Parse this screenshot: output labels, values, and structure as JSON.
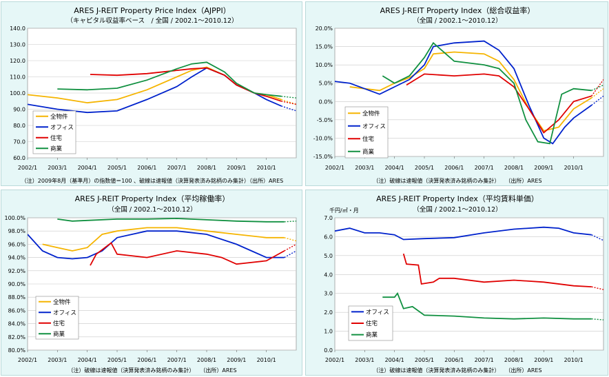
{
  "chart_data": [
    {
      "type": "line",
      "title": "ARES J-REIT Property Price Index（AJPPI）",
      "subtitle": "（キャピタル収益率ベース　/ 全国 / 2002.1～2010.12）",
      "note": "（注）2009年8月（基準月）の指数値＝100 、破線は速報値（決算発表済み銘柄のみ集計）（出所）ARES",
      "ylim": [
        60,
        140
      ],
      "yticks": [
        60,
        70,
        80,
        90,
        100,
        110,
        120,
        130,
        140
      ],
      "ytick_labels": [
        "60.0",
        "70.0",
        "80.0",
        "90.0",
        "100.0",
        "110.0",
        "120.0",
        "130.0",
        "140.0"
      ],
      "xlim": [
        2002,
        2011
      ],
      "xticks": [
        2002,
        2003,
        2004,
        2005,
        2006,
        2007,
        2008,
        2009,
        2010
      ],
      "xtick_labels": [
        "2002/1",
        "2003/1",
        "2004/1",
        "2005/1",
        "2006/1",
        "2007/1",
        "2008/1",
        "2009/1",
        "2010/1"
      ],
      "prelim_from": 2010.5,
      "series": [
        {
          "name": "全物件",
          "color": "#f5b400",
          "points": [
            [
              2002,
              99
            ],
            [
              2003,
              97
            ],
            [
              2004,
              94
            ],
            [
              2005,
              96
            ],
            [
              2006,
              102
            ],
            [
              2007,
              110
            ],
            [
              2007.5,
              114
            ],
            [
              2008,
              116
            ],
            [
              2008.6,
              111
            ],
            [
              2009,
              105
            ],
            [
              2009.6,
              100
            ],
            [
              2010,
              99
            ],
            [
              2010.5,
              96
            ],
            [
              2011,
              93
            ]
          ]
        },
        {
          "name": "オフィス",
          "color": "#0022cc",
          "points": [
            [
              2002,
              93
            ],
            [
              2003,
              90
            ],
            [
              2004,
              88
            ],
            [
              2005,
              89
            ],
            [
              2006,
              96
            ],
            [
              2007,
              104
            ],
            [
              2007.5,
              110
            ],
            [
              2008,
              115.5
            ],
            [
              2008.6,
              111
            ],
            [
              2009,
              105
            ],
            [
              2009.6,
              100
            ],
            [
              2010,
              96
            ],
            [
              2010.5,
              92
            ],
            [
              2011,
              89
            ]
          ]
        },
        {
          "name": "住宅",
          "color": "#e00000",
          "points": [
            [
              2004.1,
              111.5
            ],
            [
              2005,
              111
            ],
            [
              2006,
              112
            ],
            [
              2007,
              114
            ],
            [
              2007.5,
              115
            ],
            [
              2008,
              115.5
            ],
            [
              2008.6,
              111
            ],
            [
              2009,
              105
            ],
            [
              2009.6,
              100
            ],
            [
              2010,
              98
            ],
            [
              2010.5,
              95
            ],
            [
              2011,
              93
            ]
          ]
        },
        {
          "name": "商業",
          "color": "#109040",
          "points": [
            [
              2003,
              102.5
            ],
            [
              2004,
              102
            ],
            [
              2005,
              103
            ],
            [
              2006,
              108
            ],
            [
              2007,
              115
            ],
            [
              2007.5,
              118
            ],
            [
              2008,
              119
            ],
            [
              2008.6,
              113
            ],
            [
              2009,
              106
            ],
            [
              2009.6,
              100
            ],
            [
              2010,
              99
            ],
            [
              2010.5,
              98
            ],
            [
              2011,
              97
            ]
          ]
        }
      ]
    },
    {
      "type": "line",
      "title": "ARES J-REIT Property Index（総合収益率）",
      "subtitle": "（全国 / 2002.1～2010.12）",
      "note": "（注）破線は速報値（決算発表済み銘柄のみ集計）　　（出所）ARES",
      "ylim": [
        -15,
        20
      ],
      "yticks": [
        -15,
        -10,
        -5,
        0,
        5,
        10,
        15,
        20
      ],
      "ytick_labels": [
        "-15.0%",
        "-10.0%",
        "-5.0%",
        "0.0%",
        "5.0%",
        "10.0%",
        "15.0%",
        "20.0%"
      ],
      "xlim": [
        2002,
        2011
      ],
      "xticks": [
        2002,
        2003,
        2004,
        2005,
        2006,
        2007,
        2008,
        2009,
        2010
      ],
      "xtick_labels": [
        "2002/1",
        "2003/1",
        "2004/1",
        "2005/1",
        "2006/1",
        "2007/1",
        "2008/1",
        "2009/1",
        "2010/1"
      ],
      "prelim_from": 2010.6,
      "series": [
        {
          "name": "全物件",
          "color": "#f5b400",
          "points": [
            [
              2002.5,
              4
            ],
            [
              2003,
              3.5
            ],
            [
              2003.5,
              3
            ],
            [
              2004,
              5
            ],
            [
              2004.5,
              6.5
            ],
            [
              2005,
              9
            ],
            [
              2005.3,
              13
            ],
            [
              2006,
              13.5
            ],
            [
              2007,
              13
            ],
            [
              2007.5,
              11
            ],
            [
              2008,
              6
            ],
            [
              2008.5,
              -2
            ],
            [
              2009,
              -8
            ],
            [
              2009.5,
              -7
            ],
            [
              2010,
              -2
            ],
            [
              2010.6,
              1
            ],
            [
              2011,
              3.5
            ]
          ]
        },
        {
          "name": "オフィス",
          "color": "#0022cc",
          "points": [
            [
              2002,
              5.5
            ],
            [
              2002.5,
              5
            ],
            [
              2003,
              3.5
            ],
            [
              2003.5,
              2
            ],
            [
              2004,
              4
            ],
            [
              2004.5,
              6
            ],
            [
              2005,
              10
            ],
            [
              2005.3,
              15
            ],
            [
              2006,
              16
            ],
            [
              2007,
              16.5
            ],
            [
              2007.5,
              14
            ],
            [
              2008,
              9
            ],
            [
              2008.5,
              -1
            ],
            [
              2009,
              -10
            ],
            [
              2009.3,
              -11.5
            ],
            [
              2009.7,
              -7
            ],
            [
              2010,
              -4.5
            ],
            [
              2010.6,
              -1
            ],
            [
              2011,
              1.5
            ]
          ]
        },
        {
          "name": "住宅",
          "color": "#e00000",
          "points": [
            [
              2004.4,
              4.5
            ],
            [
              2005,
              7.5
            ],
            [
              2006,
              7
            ],
            [
              2007,
              7.5
            ],
            [
              2007.5,
              7
            ],
            [
              2008,
              4
            ],
            [
              2008.5,
              -2
            ],
            [
              2009,
              -8.5
            ],
            [
              2009.5,
              -5
            ],
            [
              2010,
              0
            ],
            [
              2010.6,
              1.5
            ],
            [
              2011,
              6
            ]
          ]
        },
        {
          "name": "商業",
          "color": "#109040",
          "points": [
            [
              2003.6,
              7
            ],
            [
              2004,
              5
            ],
            [
              2004.5,
              7
            ],
            [
              2005,
              12
            ],
            [
              2005.3,
              16
            ],
            [
              2006,
              11
            ],
            [
              2007,
              10
            ],
            [
              2007.5,
              9
            ],
            [
              2008,
              5
            ],
            [
              2008.4,
              -5
            ],
            [
              2008.8,
              -11
            ],
            [
              2009.2,
              -11.5
            ],
            [
              2009.6,
              2
            ],
            [
              2010,
              3.5
            ],
            [
              2010.6,
              3
            ],
            [
              2011,
              4.5
            ]
          ]
        }
      ]
    },
    {
      "type": "line",
      "title": "ARES J-REIT Property Index（平均稼働率）",
      "subtitle": "（全国 / 2002.1～2010.12）",
      "note": "（注）破線は速報値（決算発表済み銘柄のみ集計）　　（出所）ARES",
      "ylim": [
        80,
        100
      ],
      "yticks": [
        80,
        82,
        84,
        86,
        88,
        90,
        92,
        94,
        96,
        98,
        100
      ],
      "ytick_labels": [
        "80.0%",
        "82.0%",
        "84.0%",
        "86.0%",
        "88.0%",
        "90.0%",
        "92.0%",
        "94.0%",
        "96.0%",
        "98.0%",
        "100.0%"
      ],
      "xlim": [
        2002,
        2011
      ],
      "xticks": [
        2002,
        2003,
        2004,
        2005,
        2006,
        2007,
        2008,
        2009,
        2010
      ],
      "xtick_labels": [
        "2002/1",
        "2003/1",
        "2004/1",
        "2005/1",
        "2006/1",
        "2007/1",
        "2008/1",
        "2009/1",
        "2010/1"
      ],
      "prelim_from": 2010.6,
      "series": [
        {
          "name": "全物件",
          "color": "#f5b400",
          "points": [
            [
              2002.5,
              96
            ],
            [
              2003,
              95.5
            ],
            [
              2003.5,
              95
            ],
            [
              2004,
              95.5
            ],
            [
              2004.5,
              97.5
            ],
            [
              2005,
              98
            ],
            [
              2006,
              98.5
            ],
            [
              2007,
              98.5
            ],
            [
              2008,
              98
            ],
            [
              2009,
              97.5
            ],
            [
              2010,
              97
            ],
            [
              2010.6,
              97
            ],
            [
              2011,
              96.5
            ]
          ]
        },
        {
          "name": "オフィス",
          "color": "#0022cc",
          "points": [
            [
              2002,
              97.5
            ],
            [
              2002.5,
              95
            ],
            [
              2003,
              94
            ],
            [
              2003.5,
              93.8
            ],
            [
              2004,
              94
            ],
            [
              2004.5,
              95
            ],
            [
              2005,
              97
            ],
            [
              2006,
              98
            ],
            [
              2007,
              98
            ],
            [
              2008,
              97.5
            ],
            [
              2009,
              96
            ],
            [
              2009.5,
              95
            ],
            [
              2010,
              94
            ],
            [
              2010.6,
              94
            ],
            [
              2011,
              95
            ]
          ]
        },
        {
          "name": "住宅",
          "color": "#e00000",
          "points": [
            [
              2004.1,
              92.8
            ],
            [
              2004.3,
              94.5
            ],
            [
              2004.8,
              96.2
            ],
            [
              2005,
              94.5
            ],
            [
              2006,
              94
            ],
            [
              2007,
              95
            ],
            [
              2008,
              94.5
            ],
            [
              2008.5,
              94
            ],
            [
              2009,
              93
            ],
            [
              2010,
              93.5
            ],
            [
              2010.6,
              95
            ],
            [
              2011,
              96
            ]
          ]
        },
        {
          "name": "商業",
          "color": "#109040",
          "points": [
            [
              2003,
              99.8
            ],
            [
              2003.5,
              99.5
            ],
            [
              2004,
              99.6
            ],
            [
              2005,
              99.8
            ],
            [
              2006,
              99.8
            ],
            [
              2007,
              99.9
            ],
            [
              2008,
              99.7
            ],
            [
              2009,
              99.5
            ],
            [
              2010,
              99.4
            ],
            [
              2010.6,
              99.4
            ],
            [
              2011,
              99.5
            ]
          ]
        }
      ]
    },
    {
      "type": "line",
      "title": "ARES J-REIT Property Index（平均賃料単価）",
      "subtitle": "（全国 / 2002.1～2010.12）",
      "unit_label": "千円/㎡・月",
      "note": "（注）破線は速報値（決算発表済み銘柄のみ集計）　　（出所）ARES",
      "ylim": [
        0,
        7
      ],
      "yticks": [
        0,
        1,
        2,
        3,
        4,
        5,
        6,
        7
      ],
      "ytick_labels": [
        "0.0",
        "1.0",
        "2.0",
        "3.0",
        "4.0",
        "5.0",
        "6.0",
        "7.0"
      ],
      "xlim": [
        2002,
        2011
      ],
      "xticks": [
        2002,
        2003,
        2004,
        2005,
        2006,
        2007,
        2008,
        2009,
        2010
      ],
      "xtick_labels": [
        "2002/1",
        "2003/1",
        "2004/1",
        "2005/1",
        "2006/1",
        "2007/1",
        "2008/1",
        "2009/1",
        "2010/1"
      ],
      "prelim_from": 2010.6,
      "series": [
        {
          "name": "オフィス",
          "color": "#0022cc",
          "points": [
            [
              2002,
              6.3
            ],
            [
              2002.5,
              6.45
            ],
            [
              2003,
              6.2
            ],
            [
              2003.5,
              6.2
            ],
            [
              2004,
              6.1
            ],
            [
              2004.3,
              5.85
            ],
            [
              2005,
              5.9
            ],
            [
              2006,
              5.95
            ],
            [
              2007,
              6.2
            ],
            [
              2008,
              6.4
            ],
            [
              2009,
              6.5
            ],
            [
              2009.5,
              6.45
            ],
            [
              2010,
              6.2
            ],
            [
              2010.6,
              6.1
            ],
            [
              2011,
              5.8
            ]
          ]
        },
        {
          "name": "住宅",
          "color": "#e00000",
          "points": [
            [
              2004.3,
              5.1
            ],
            [
              2004.4,
              4.55
            ],
            [
              2004.8,
              4.5
            ],
            [
              2004.9,
              3.5
            ],
            [
              2005.3,
              3.6
            ],
            [
              2005.5,
              3.8
            ],
            [
              2006,
              3.8
            ],
            [
              2007,
              3.6
            ],
            [
              2008,
              3.7
            ],
            [
              2009,
              3.6
            ],
            [
              2010,
              3.4
            ],
            [
              2010.6,
              3.35
            ],
            [
              2011,
              3.2
            ]
          ]
        },
        {
          "name": "商業",
          "color": "#109040",
          "points": [
            [
              2003.6,
              2.8
            ],
            [
              2004,
              2.8
            ],
            [
              2004.1,
              3.0
            ],
            [
              2004.3,
              2.2
            ],
            [
              2004.6,
              2.3
            ],
            [
              2005,
              1.85
            ],
            [
              2006,
              1.8
            ],
            [
              2007,
              1.7
            ],
            [
              2008,
              1.65
            ],
            [
              2009,
              1.7
            ],
            [
              2010,
              1.65
            ],
            [
              2010.6,
              1.65
            ],
            [
              2011,
              1.6
            ]
          ]
        }
      ]
    }
  ]
}
